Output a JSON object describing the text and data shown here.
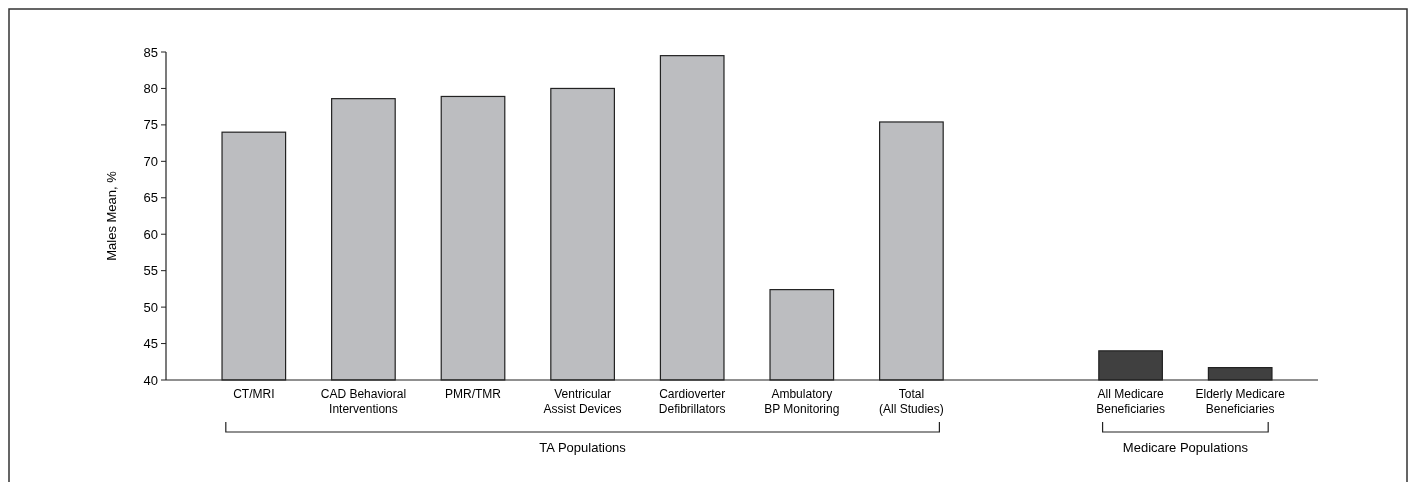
{
  "chart_data": {
    "type": "bar",
    "ylabel": "Males Mean, %",
    "categories": [
      "CT/MRI",
      "CAD Behavioral\nInterventions",
      "PMR/TMR",
      "Ventricular\nAssist Devices",
      "Cardioverter\nDefibrillators",
      "Ambulatory\nBP Monitoring",
      "Total\n(All Studies)",
      null,
      "All Medicare\nBeneficiaries",
      "Elderly Medicare\nBeneficiaries"
    ],
    "values": [
      74,
      78.6,
      78.9,
      80,
      84.5,
      52.4,
      75.4,
      null,
      44,
      41.7
    ],
    "colors": [
      "#bcbdc0",
      "#bcbdc0",
      "#bcbdc0",
      "#bcbdc0",
      "#bcbdc0",
      "#bcbdc0",
      "#bcbdc0",
      null,
      "#404040",
      "#404040"
    ],
    "ylim": [
      40,
      85
    ],
    "yticks": [
      40,
      45,
      50,
      55,
      60,
      65,
      70,
      75,
      80,
      85
    ],
    "grid": false,
    "annotations": [
      "TA Populations",
      "Medicare Populations"
    ]
  }
}
